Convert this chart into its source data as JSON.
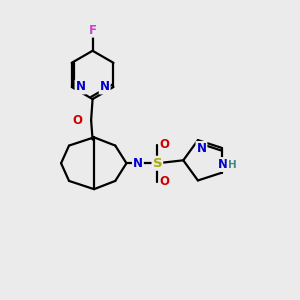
{
  "background_color": "#ebebeb",
  "bond_color": "#000000",
  "atom_colors": {
    "F": "#cc44cc",
    "N": "#0000cc",
    "O": "#cc0000",
    "S": "#aaaa00",
    "H": "#448888",
    "C": "#000000"
  },
  "figsize": [
    3.0,
    3.0
  ],
  "dpi": 100,
  "lw": 1.6,
  "fontsize": 8.5
}
